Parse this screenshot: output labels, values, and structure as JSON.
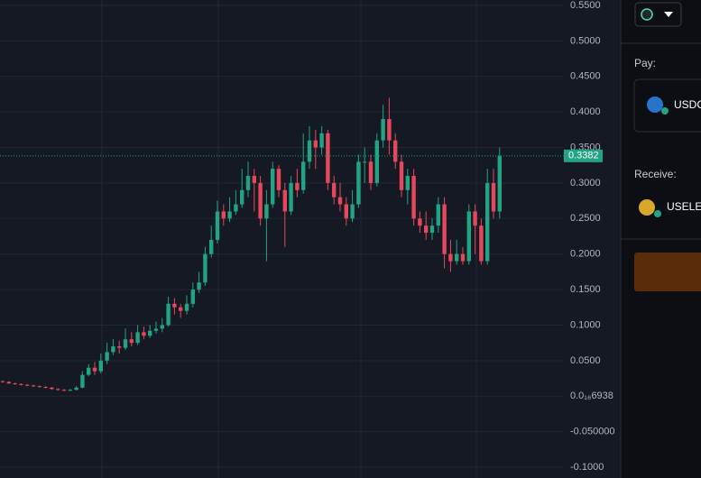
{
  "chart_data": {
    "type": "candlestick",
    "ylim": [
      -0.1,
      0.55
    ],
    "yticks": [
      {
        "value": 0.55,
        "label": "0.5500"
      },
      {
        "value": 0.5,
        "label": "0.5000"
      },
      {
        "value": 0.45,
        "label": "0.4500"
      },
      {
        "value": 0.4,
        "label": "0.4000"
      },
      {
        "value": 0.35,
        "label": "0.3500"
      },
      {
        "value": 0.3,
        "label": "0.3000"
      },
      {
        "value": 0.25,
        "label": "0.2500"
      },
      {
        "value": 0.2,
        "label": "0.2000"
      },
      {
        "value": 0.15,
        "label": "0.1500"
      },
      {
        "value": 0.1,
        "label": "0.1000"
      },
      {
        "value": 0.05,
        "label": "0.0500"
      },
      {
        "value": 0,
        "label": "0.0₁₆6938"
      },
      {
        "value": -0.05,
        "label": "-0.050000"
      },
      {
        "value": -0.1,
        "label": "-0.1000"
      }
    ],
    "grid": true,
    "up_color": "#22a384",
    "down_color": "#e5485b",
    "last_price": 0.3382,
    "open": [
      0.021,
      0.02,
      0.018,
      0.017,
      0.016,
      0.015,
      0.014,
      0.013,
      0.012,
      0.01,
      0.009,
      0.008,
      0.009,
      0.012,
      0.03,
      0.04,
      0.035,
      0.05,
      0.062,
      0.07,
      0.068,
      0.08,
      0.075,
      0.09,
      0.085,
      0.092,
      0.095,
      0.1,
      0.13,
      0.125,
      0.12,
      0.13,
      0.15,
      0.16,
      0.2,
      0.22,
      0.26,
      0.25,
      0.26,
      0.27,
      0.29,
      0.31,
      0.3,
      0.25,
      0.27,
      0.32,
      0.29,
      0.26,
      0.3,
      0.29,
      0.33,
      0.36,
      0.35,
      0.37,
      0.3,
      0.28,
      0.27,
      0.25,
      0.27,
      0.33,
      0.33,
      0.3,
      0.36,
      0.39,
      0.36,
      0.33,
      0.29,
      0.31,
      0.25,
      0.24,
      0.23,
      0.24,
      0.27,
      0.2,
      0.19,
      0.2,
      0.19,
      0.26,
      0.24,
      0.19,
      0.3,
      0.26
    ],
    "high": [
      0.022,
      0.021,
      0.019,
      0.018,
      0.017,
      0.016,
      0.015,
      0.014,
      0.013,
      0.011,
      0.01,
      0.01,
      0.014,
      0.035,
      0.045,
      0.048,
      0.06,
      0.075,
      0.08,
      0.078,
      0.095,
      0.09,
      0.1,
      0.098,
      0.1,
      0.105,
      0.11,
      0.14,
      0.138,
      0.13,
      0.142,
      0.16,
      0.175,
      0.21,
      0.24,
      0.275,
      0.27,
      0.28,
      0.29,
      0.32,
      0.33,
      0.32,
      0.31,
      0.29,
      0.33,
      0.325,
      0.3,
      0.31,
      0.32,
      0.37,
      0.38,
      0.375,
      0.38,
      0.375,
      0.31,
      0.3,
      0.28,
      0.29,
      0.34,
      0.35,
      0.34,
      0.37,
      0.41,
      0.42,
      0.37,
      0.34,
      0.32,
      0.32,
      0.26,
      0.26,
      0.25,
      0.28,
      0.28,
      0.22,
      0.22,
      0.21,
      0.27,
      0.27,
      0.25,
      0.32,
      0.32,
      0.35
    ],
    "low": [
      0.019,
      0.017,
      0.016,
      0.015,
      0.014,
      0.013,
      0.012,
      0.011,
      0.009,
      0.008,
      0.007,
      0.007,
      0.008,
      0.011,
      0.028,
      0.03,
      0.032,
      0.045,
      0.058,
      0.06,
      0.065,
      0.07,
      0.072,
      0.08,
      0.082,
      0.088,
      0.09,
      0.098,
      0.115,
      0.11,
      0.115,
      0.125,
      0.145,
      0.155,
      0.195,
      0.215,
      0.24,
      0.245,
      0.255,
      0.265,
      0.28,
      0.26,
      0.24,
      0.19,
      0.265,
      0.28,
      0.21,
      0.255,
      0.28,
      0.285,
      0.32,
      0.32,
      0.34,
      0.29,
      0.27,
      0.26,
      0.24,
      0.245,
      0.265,
      0.3,
      0.29,
      0.295,
      0.35,
      0.34,
      0.32,
      0.28,
      0.27,
      0.24,
      0.23,
      0.22,
      0.22,
      0.23,
      0.18,
      0.175,
      0.185,
      0.185,
      0.185,
      0.2,
      0.185,
      0.185,
      0.25,
      0.25
    ],
    "close": [
      0.02,
      0.018,
      0.017,
      0.016,
      0.015,
      0.014,
      0.013,
      0.012,
      0.01,
      0.009,
      0.008,
      0.009,
      0.012,
      0.03,
      0.04,
      0.035,
      0.05,
      0.062,
      0.07,
      0.068,
      0.08,
      0.075,
      0.09,
      0.085,
      0.092,
      0.095,
      0.1,
      0.13,
      0.125,
      0.12,
      0.13,
      0.15,
      0.16,
      0.2,
      0.22,
      0.26,
      0.25,
      0.26,
      0.27,
      0.29,
      0.31,
      0.3,
      0.25,
      0.27,
      0.32,
      0.29,
      0.26,
      0.3,
      0.29,
      0.33,
      0.36,
      0.35,
      0.37,
      0.3,
      0.28,
      0.27,
      0.25,
      0.27,
      0.33,
      0.33,
      0.3,
      0.36,
      0.39,
      0.36,
      0.33,
      0.29,
      0.31,
      0.25,
      0.24,
      0.23,
      0.24,
      0.27,
      0.2,
      0.19,
      0.2,
      0.19,
      0.26,
      0.24,
      0.19,
      0.3,
      0.26,
      0.3382
    ]
  },
  "panel": {
    "pay_label": "Pay:",
    "pay_token": "USDC",
    "receive_label": "Receive:",
    "receive_token": "USELE"
  }
}
